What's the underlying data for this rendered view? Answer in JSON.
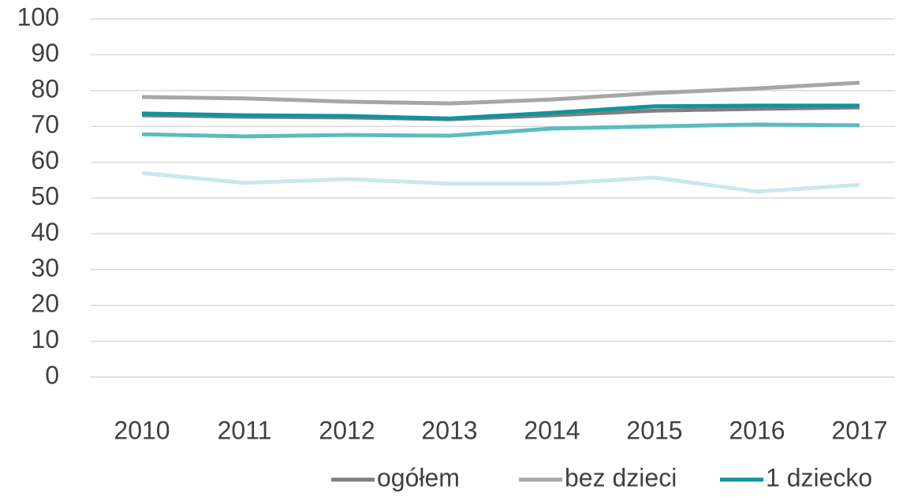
{
  "chart_data": {
    "type": "line",
    "categories": [
      "2010",
      "2011",
      "2012",
      "2013",
      "2014",
      "2015",
      "2016",
      "2017"
    ],
    "ylim": [
      0,
      100
    ],
    "yticks": [
      0,
      10,
      20,
      30,
      40,
      50,
      60,
      70,
      80,
      90,
      100
    ],
    "grid": true,
    "legend": "bottom",
    "series": [
      {
        "color": "#c9e9eb",
        "values": [
          57.0,
          54.2,
          55.3,
          54.0,
          54.0,
          55.7,
          51.8,
          53.7
        ]
      },
      {
        "color": "#5bbcbf",
        "values": [
          67.8,
          67.2,
          67.6,
          67.4,
          69.4,
          70.0,
          70.5,
          70.3
        ]
      },
      {
        "name": "bez dzieci",
        "color": "#a6a6a6",
        "values": [
          78.2,
          77.8,
          76.9,
          76.4,
          77.5,
          79.3,
          80.6,
          82.2
        ]
      },
      {
        "name": "ogółem",
        "color": "#7f7f7f",
        "values": [
          73.1,
          72.7,
          72.5,
          72.0,
          73.1,
          74.4,
          74.9,
          75.3
        ]
      },
      {
        "name": "1 dziecko",
        "color": "#0e959b",
        "values": [
          73.6,
          73.1,
          72.9,
          72.2,
          73.8,
          75.6,
          75.8,
          75.8
        ]
      }
    ]
  }
}
